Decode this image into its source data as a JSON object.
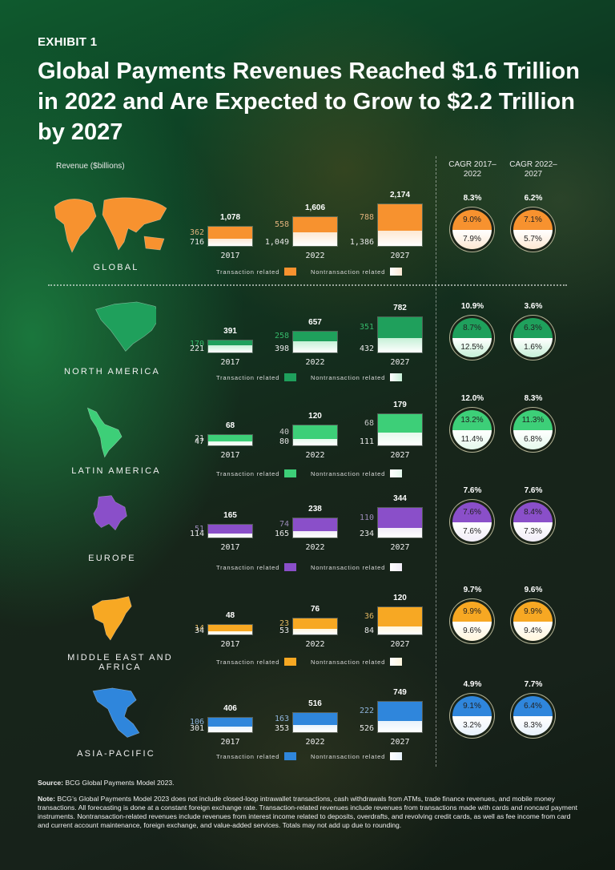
{
  "header": {
    "exhibit": "EXHIBIT 1",
    "title": "Global Payments Revenues Reached $1.6 Trillion in 2022 and Are Expected to Grow to $2.2 Trillion by 2027",
    "revenue_label": "Revenue ($billions)",
    "cagr1_label": "CAGR 2017–2022",
    "cagr2_label": "CAGR 2022–2027"
  },
  "legend": {
    "transaction": "Transaction related",
    "nontransaction": "Nontransaction related"
  },
  "years": [
    "2017",
    "2022",
    "2027"
  ],
  "regions": [
    {
      "name": "GLOBAL",
      "color_tx": "#f7922f",
      "color_ntx": "#fde8d2",
      "label_color": "#e0b27c",
      "totals": [
        "1,078",
        "1,606",
        "2,174"
      ],
      "tx": [
        "362",
        "558",
        "788"
      ],
      "ntx": [
        "716",
        "1,049",
        "1,386"
      ],
      "cagr1": {
        "total": "8.3%",
        "tx": "9.0%",
        "ntx": "7.9%"
      },
      "cagr2": {
        "total": "6.2%",
        "tx": "7.1%",
        "ntx": "5.7%"
      }
    },
    {
      "name": "NORTH AMERICA",
      "color_tx": "#1fa05c",
      "color_ntx": "#c6f0d7",
      "label_color": "#35b86a",
      "totals": [
        "391",
        "657",
        "782"
      ],
      "tx": [
        "170",
        "258",
        "351"
      ],
      "ntx": [
        "221",
        "398",
        "432"
      ],
      "cagr1": {
        "total": "10.9%",
        "tx": "8.7%",
        "ntx": "12.5%"
      },
      "cagr2": {
        "total": "3.6%",
        "tx": "6.3%",
        "ntx": "1.6%"
      }
    },
    {
      "name": "LATIN AMERICA",
      "color_tx": "#3dcf78",
      "color_ntx": "#e4f9ec",
      "label_color": "#c8c8c8",
      "totals": [
        "68",
        "120",
        "179"
      ],
      "tx": [
        "21",
        "40",
        "68"
      ],
      "ntx": [
        "47",
        "80",
        "111"
      ],
      "cagr1": {
        "total": "12.0%",
        "tx": "13.2%",
        "ntx": "11.4%"
      },
      "cagr2": {
        "total": "8.3%",
        "tx": "11.3%",
        "ntx": "6.8%"
      }
    },
    {
      "name": "EUROPE",
      "color_tx": "#8a4fc9",
      "color_ntx": "#f1ecf7",
      "label_color": "#9a8ab8",
      "totals": [
        "165",
        "238",
        "344"
      ],
      "tx": [
        "51",
        "74",
        "110"
      ],
      "ntx": [
        "114",
        "165",
        "234"
      ],
      "cagr1": {
        "total": "7.6%",
        "tx": "7.6%",
        "ntx": "7.6%"
      },
      "cagr2": {
        "total": "7.6%",
        "tx": "8.4%",
        "ntx": "7.3%"
      }
    },
    {
      "name": "MIDDLE EAST AND AFRICA",
      "color_tx": "#f7a823",
      "color_ntx": "#fff5dc",
      "label_color": "#e0b660",
      "totals": [
        "48",
        "76",
        "120"
      ],
      "tx": [
        "14",
        "23",
        "36"
      ],
      "ntx": [
        "34",
        "53",
        "84"
      ],
      "cagr1": {
        "total": "9.7%",
        "tx": "9.9%",
        "ntx": "9.6%"
      },
      "cagr2": {
        "total": "9.6%",
        "tx": "9.9%",
        "ntx": "9.4%"
      }
    },
    {
      "name": "ASIA-PACIFIC",
      "color_tx": "#2f86dc",
      "color_ntx": "#e8f2fc",
      "label_color": "#8fb4dc",
      "totals": [
        "406",
        "516",
        "749"
      ],
      "tx": [
        "106",
        "163",
        "222"
      ],
      "ntx": [
        "301",
        "353",
        "526"
      ],
      "cagr1": {
        "total": "4.9%",
        "tx": "9.1%",
        "ntx": "3.2%"
      },
      "cagr2": {
        "total": "7.7%",
        "tx": "6.4%",
        "ntx": "8.3%"
      }
    }
  ],
  "footer": {
    "source_label": "Source:",
    "source": "BCG Global Payments Model 2023.",
    "note_label": "Note:",
    "note": "BCG’s Global Payments Model 2023 does not include closed-loop intrawallet transactions, cash withdrawals from ATMs, trade finance revenues, and mobile money transactions. All forecasting is done at a constant foreign exchange rate. Transaction-related revenues include revenues from transactions made with cards and noncard payment instruments. Nontransaction-related revenues include revenues from interest income related to deposits, overdrafts, and revolving credit cards, as well as fee income from card and current account maintenance, foreign exchange, and value-added services. Totals may not add up due to rounding."
  },
  "chart_data": {
    "type": "bar",
    "title": "Global Payments Revenues Reached $1.6 Trillion in 2022 and Are Expected to Grow to $2.2 Trillion by 2027",
    "ylabel": "Revenue ($billions)",
    "categories": [
      "2017",
      "2022",
      "2027"
    ],
    "stacked": true,
    "panels": [
      {
        "region": "Global",
        "series": [
          {
            "name": "Transaction related",
            "values": [
              362,
              558,
              788
            ]
          },
          {
            "name": "Nontransaction related",
            "values": [
              716,
              1049,
              1386
            ]
          }
        ],
        "totals": [
          1078,
          1606,
          2174
        ],
        "cagr_2017_2022": {
          "total": 8.3,
          "transaction": 9.0,
          "nontransaction": 7.9
        },
        "cagr_2022_2027": {
          "total": 6.2,
          "transaction": 7.1,
          "nontransaction": 5.7
        }
      },
      {
        "region": "North America",
        "series": [
          {
            "name": "Transaction related",
            "values": [
              170,
              258,
              351
            ]
          },
          {
            "name": "Nontransaction related",
            "values": [
              221,
              398,
              432
            ]
          }
        ],
        "totals": [
          391,
          657,
          782
        ],
        "cagr_2017_2022": {
          "total": 10.9,
          "transaction": 8.7,
          "nontransaction": 12.5
        },
        "cagr_2022_2027": {
          "total": 3.6,
          "transaction": 6.3,
          "nontransaction": 1.6
        }
      },
      {
        "region": "Latin America",
        "series": [
          {
            "name": "Transaction related",
            "values": [
              21,
              40,
              68
            ]
          },
          {
            "name": "Nontransaction related",
            "values": [
              47,
              80,
              111
            ]
          }
        ],
        "totals": [
          68,
          120,
          179
        ],
        "cagr_2017_2022": {
          "total": 12.0,
          "transaction": 13.2,
          "nontransaction": 11.4
        },
        "cagr_2022_2027": {
          "total": 8.3,
          "transaction": 11.3,
          "nontransaction": 6.8
        }
      },
      {
        "region": "Europe",
        "series": [
          {
            "name": "Transaction related",
            "values": [
              51,
              74,
              110
            ]
          },
          {
            "name": "Nontransaction related",
            "values": [
              114,
              165,
              234
            ]
          }
        ],
        "totals": [
          165,
          238,
          344
        ],
        "cagr_2017_2022": {
          "total": 7.6,
          "transaction": 7.6,
          "nontransaction": 7.6
        },
        "cagr_2022_2027": {
          "total": 7.6,
          "transaction": 8.4,
          "nontransaction": 7.3
        }
      },
      {
        "region": "Middle East and Africa",
        "series": [
          {
            "name": "Transaction related",
            "values": [
              14,
              23,
              36
            ]
          },
          {
            "name": "Nontransaction related",
            "values": [
              34,
              53,
              84
            ]
          }
        ],
        "totals": [
          48,
          76,
          120
        ],
        "cagr_2017_2022": {
          "total": 9.7,
          "transaction": 9.9,
          "nontransaction": 9.6
        },
        "cagr_2022_2027": {
          "total": 9.6,
          "transaction": 9.9,
          "nontransaction": 9.4
        }
      },
      {
        "region": "Asia-Pacific",
        "series": [
          {
            "name": "Transaction related",
            "values": [
              106,
              163,
              222
            ]
          },
          {
            "name": "Nontransaction related",
            "values": [
              301,
              353,
              526
            ]
          }
        ],
        "totals": [
          406,
          516,
          749
        ],
        "cagr_2017_2022": {
          "total": 4.9,
          "transaction": 9.1,
          "nontransaction": 3.2
        },
        "cagr_2022_2027": {
          "total": 7.7,
          "transaction": 6.4,
          "nontransaction": 8.3
        }
      }
    ]
  }
}
